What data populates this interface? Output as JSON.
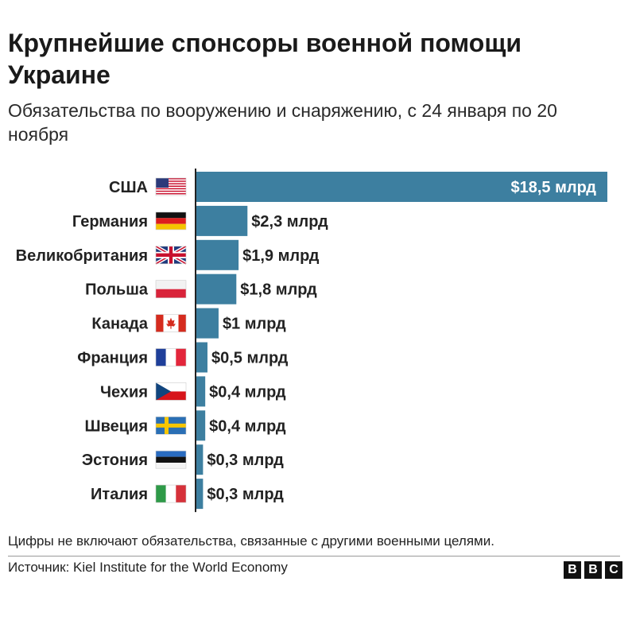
{
  "header": {
    "title": "Крупнейшие спонсоры военной помощи Украине",
    "subtitle": "Обязательства по вооружению и снаряжению, с 24 января по 20 ноября"
  },
  "chart_data": {
    "type": "bar",
    "orientation": "horizontal",
    "title": "Крупнейшие спонсоры военной помощи Украине",
    "subtitle": "Обязательства по вооружению и снаряжению, с 24 января по 20 ноября",
    "categories": [
      "США",
      "Германия",
      "Великобритания",
      "Польша",
      "Канада",
      "Франция",
      "Чехия",
      "Швеция",
      "Эстония",
      "Италия"
    ],
    "flags": [
      "us-flag-icon",
      "germany-flag-icon",
      "uk-flag-icon",
      "poland-flag-icon",
      "canada-flag-icon",
      "france-flag-icon",
      "czech-flag-icon",
      "sweden-flag-icon",
      "estonia-flag-icon",
      "italy-flag-icon"
    ],
    "values": [
      18.5,
      2.3,
      1.9,
      1.8,
      1.0,
      0.5,
      0.4,
      0.4,
      0.3,
      0.3
    ],
    "value_labels": [
      "$18,5 млрд",
      "$2,3 млрд",
      "$1,9 млрд",
      "$1,8 млрд",
      "$1 млрд",
      "$0,5 млрд",
      "$0,4 млрд",
      "$0,4 млрд",
      "$0,3 млрд",
      "$0,3 млрд"
    ],
    "unit": "млрд $",
    "xlim": [
      0,
      18.5
    ],
    "bar_color": "#3d7fa0",
    "grid": false,
    "legend": "none"
  },
  "footer": {
    "note": "Цифры не включают обязательства, связанные с другими военными целями.",
    "source": "Источник: Kiel Institute for the World Economy",
    "logo_letters": [
      "B",
      "B",
      "C"
    ]
  }
}
